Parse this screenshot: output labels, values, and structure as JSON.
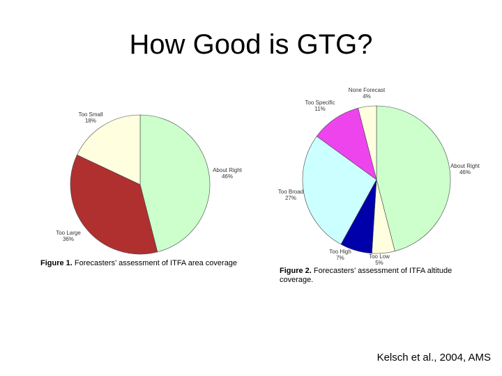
{
  "slide": {
    "title": "How Good is GTG?",
    "citation": "Kelsch et al., 2004, AMS"
  },
  "captions": {
    "fig1_label": "Figure 1.",
    "fig1_text": "Forecasters’ assessment of ITFA area coverage",
    "fig2_label": "Figure 2.",
    "fig2_text": "Forecasters’ assessment of ITFA altitude coverage."
  },
  "chart_data": [
    {
      "type": "pie",
      "title": "",
      "slices": [
        {
          "label": "About Right",
          "pct_label": "46%",
          "value": 46,
          "color": "#ccffcc"
        },
        {
          "label": "Too Large",
          "pct_label": "36%",
          "value": 36,
          "color": "#b03030"
        },
        {
          "label": "Too Small",
          "pct_label": "18%",
          "value": 18,
          "color": "#ffffe0"
        }
      ],
      "start_angle_deg": 0,
      "direction": "clockwise"
    },
    {
      "type": "pie",
      "title": "",
      "slices": [
        {
          "label": "About Right",
          "pct_label": "46%",
          "value": 46,
          "color": "#ccffcc"
        },
        {
          "label": "Too Low",
          "pct_label": "5%",
          "value": 5,
          "color": "#ffffe0"
        },
        {
          "label": "Too High",
          "pct_label": "7%",
          "value": 7,
          "color": "#0000aa"
        },
        {
          "label": "Too Broad",
          "pct_label": "27%",
          "value": 27,
          "color": "#ccffff"
        },
        {
          "label": "Too Specific",
          "pct_label": "11%",
          "value": 11,
          "color": "#ee44ee"
        },
        {
          "label": "None Forecast",
          "pct_label": "4%",
          "value": 4,
          "color": "#ffffe0"
        }
      ],
      "start_angle_deg": 0,
      "direction": "clockwise"
    }
  ]
}
